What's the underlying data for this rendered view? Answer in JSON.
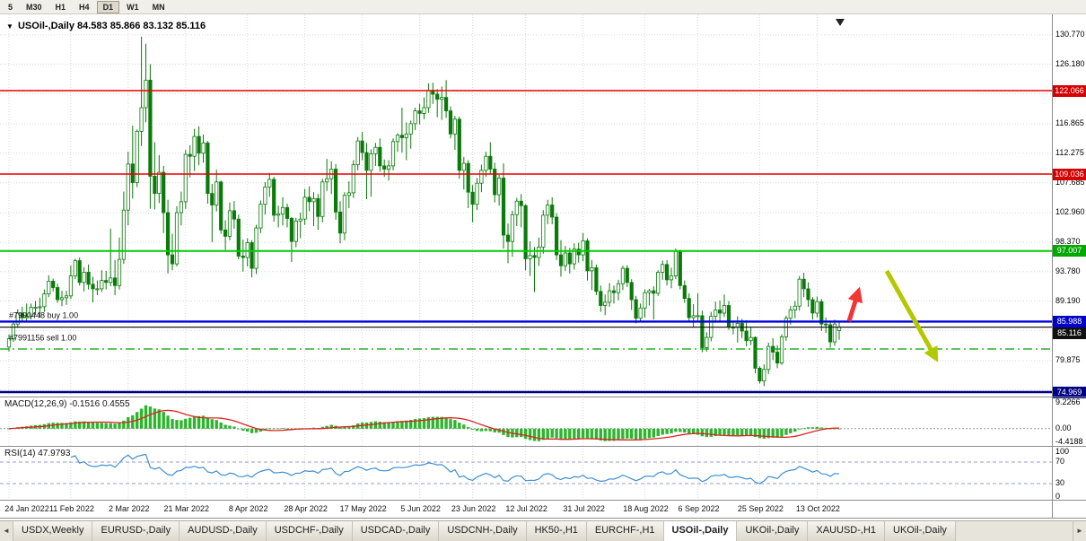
{
  "toolbar": {
    "timeframes": [
      "5",
      "M30",
      "H1",
      "H4",
      "D1",
      "W1",
      "MN"
    ],
    "active": "D1"
  },
  "chart": {
    "collapse_icon": "▼",
    "ohlc_text": "84.583 85.866 83.132 85.116",
    "trade_labels": [
      {
        "text": "#7990448 buy 1.00",
        "price": 86.55
      },
      {
        "text": "#7991156 sell 1.00",
        "price": 83.05
      }
    ]
  },
  "chart_data": {
    "type": "candlestick",
    "symbol_label": "USOil-,Daily",
    "timeframe": "Daily",
    "ohlc_current": {
      "open": 84.583,
      "high": 85.866,
      "low": 83.132,
      "close": 85.116
    },
    "candle_color": "#0b7a0b",
    "candle_up_fill": "#ffffff",
    "y_ticks": [
      130.77,
      126.18,
      116.865,
      112.275,
      107.685,
      102.96,
      98.37,
      93.78,
      89.19,
      79.875
    ],
    "y_grid_extra": [
      121.59,
      84.6,
      75.285
    ],
    "x_labels": [
      [
        0,
        "24 Jan 2022"
      ],
      [
        14,
        "11 Feb 2022"
      ],
      [
        27,
        "2 Mar 2022"
      ],
      [
        40,
        "21 Mar 2022"
      ],
      [
        54,
        "8 Apr 2022"
      ],
      [
        67,
        "28 Apr 2022"
      ],
      [
        80,
        "17 May 2022"
      ],
      [
        93,
        "5 Jun 2022"
      ],
      [
        105,
        "23 Jun 2022"
      ],
      [
        117,
        "12 Jul 2022"
      ],
      [
        130,
        "31 Jul 2022"
      ],
      [
        144,
        "18 Aug 2022"
      ],
      [
        156,
        "6 Sep 2022"
      ],
      [
        170,
        "25 Sep 2022"
      ],
      [
        183,
        "13 Oct 2022"
      ]
    ],
    "hlines": [
      {
        "price": 122.066,
        "color": "#e60000",
        "width": 1.6,
        "style": "solid",
        "badge": "#d40000"
      },
      {
        "price": 109.036,
        "color": "#e60000",
        "width": 1.6,
        "style": "solid",
        "badge": "#d40000"
      },
      {
        "price": 97.007,
        "color": "#00cc00",
        "width": 2,
        "style": "solid",
        "badge": "#00a800"
      },
      {
        "price": 85.988,
        "color": "#0000dd",
        "width": 2.4,
        "style": "solid",
        "badge": "#0000c8"
      },
      {
        "price": 85.116,
        "color": "#1a1a1a",
        "width": 1.2,
        "style": "solid",
        "badge": "#111111"
      },
      {
        "price": 81.7,
        "color": "#00a000",
        "width": 1.2,
        "style": "dashdot",
        "badge": null
      },
      {
        "price": 74.969,
        "color": "#000085",
        "width": 2.6,
        "style": "solid",
        "badge": "#000085"
      }
    ],
    "arrows": [
      {
        "from": [
          946,
          342
        ],
        "to": [
          956,
          310
        ],
        "color": "#f23535",
        "name": "red-up-arrow"
      },
      {
        "from": [
          988,
          286
        ],
        "to": [
          1042,
          382
        ],
        "color": "#b4c800",
        "name": "yellow-down-arrow"
      }
    ],
    "candles": [
      [
        82.0,
        84.0,
        81.3,
        83.3
      ],
      [
        83.3,
        86.0,
        82.8,
        85.6
      ],
      [
        85.6,
        87.9,
        85.0,
        87.3
      ],
      [
        87.3,
        88.3,
        86.0,
        86.6
      ],
      [
        86.6,
        88.8,
        86.0,
        86.8
      ],
      [
        86.8,
        88.8,
        86.3,
        88.2
      ],
      [
        88.2,
        89.2,
        87.0,
        88.2
      ],
      [
        88.2,
        89.7,
        86.6,
        88.3
      ],
      [
        88.3,
        91.0,
        87.5,
        90.3
      ],
      [
        90.3,
        93.2,
        89.8,
        92.3
      ],
      [
        92.3,
        92.7,
        90.7,
        91.3
      ],
      [
        91.3,
        91.9,
        88.9,
        89.4
      ],
      [
        89.4,
        90.8,
        88.4,
        89.7
      ],
      [
        89.7,
        90.8,
        88.6,
        90.0
      ],
      [
        90.0,
        94.7,
        89.5,
        93.1
      ],
      [
        93.1,
        95.8,
        92.6,
        95.5
      ],
      [
        95.5,
        96.0,
        91.6,
        92.1
      ],
      [
        92.1,
        94.5,
        90.7,
        93.7
      ],
      [
        93.7,
        94.9,
        91.0,
        91.8
      ],
      [
        91.8,
        93.0,
        89.0,
        91.1
      ],
      [
        91.1,
        92.4,
        90.1,
        91.1
      ],
      [
        91.1,
        94.0,
        90.6,
        92.4
      ],
      [
        92.4,
        93.9,
        91.0,
        92.1
      ],
      [
        92.1,
        100.5,
        91.5,
        92.8
      ],
      [
        92.8,
        95.6,
        90.1,
        91.6
      ],
      [
        91.6,
        99.1,
        91.0,
        95.7
      ],
      [
        95.7,
        106.3,
        95.0,
        103.4
      ],
      [
        103.4,
        112.5,
        101.0,
        110.6
      ],
      [
        110.6,
        116.6,
        105.2,
        107.7
      ],
      [
        107.7,
        116.0,
        107.0,
        115.7
      ],
      [
        115.7,
        130.5,
        113.4,
        119.4
      ],
      [
        119.4,
        129.4,
        117.1,
        123.7
      ],
      [
        123.7,
        126.2,
        103.6,
        108.7
      ],
      [
        108.7,
        114.0,
        103.5,
        106.0
      ],
      [
        106.0,
        112.0,
        104.5,
        109.3
      ],
      [
        109.3,
        110.3,
        99.8,
        103.0
      ],
      [
        103.0,
        105.0,
        93.5,
        96.4
      ],
      [
        96.4,
        99.7,
        94.0,
        95.0
      ],
      [
        95.0,
        104.0,
        94.6,
        103.0
      ],
      [
        103.0,
        106.3,
        101.0,
        104.7
      ],
      [
        104.7,
        112.8,
        103.6,
        112.1
      ],
      [
        112.1,
        113.5,
        108.5,
        111.8
      ],
      [
        111.8,
        116.1,
        109.5,
        114.9
      ],
      [
        114.9,
        116.5,
        110.4,
        112.3
      ],
      [
        112.3,
        115.2,
        110.8,
        113.9
      ],
      [
        113.9,
        114.2,
        104.4,
        106.0
      ],
      [
        106.0,
        107.5,
        98.4,
        104.2
      ],
      [
        104.2,
        109.7,
        103.2,
        107.8
      ],
      [
        107.8,
        108.0,
        99.7,
        100.3
      ],
      [
        100.3,
        101.8,
        97.2,
        99.3
      ],
      [
        99.3,
        104.6,
        98.7,
        103.3
      ],
      [
        103.3,
        104.8,
        100.5,
        102.0
      ],
      [
        102.0,
        102.7,
        95.7,
        96.2
      ],
      [
        96.2,
        98.8,
        93.8,
        96.0
      ],
      [
        96.0,
        99.0,
        94.6,
        98.3
      ],
      [
        98.3,
        98.7,
        92.9,
        94.3
      ],
      [
        94.3,
        101.1,
        93.4,
        100.6
      ],
      [
        100.6,
        104.9,
        99.8,
        104.3
      ],
      [
        104.3,
        107.8,
        102.7,
        107.0
      ],
      [
        107.0,
        109.2,
        105.5,
        108.2
      ],
      [
        108.2,
        108.6,
        101.6,
        102.6
      ],
      [
        102.6,
        104.1,
        100.7,
        102.8
      ],
      [
        102.8,
        105.4,
        101.0,
        103.8
      ],
      [
        103.8,
        104.4,
        100.7,
        102.1
      ],
      [
        102.1,
        102.3,
        95.3,
        98.5
      ],
      [
        98.5,
        102.2,
        97.6,
        101.7
      ],
      [
        101.7,
        103.0,
        99.0,
        102.0
      ],
      [
        102.0,
        106.7,
        101.1,
        105.4
      ],
      [
        105.4,
        107.1,
        103.2,
        104.7
      ],
      [
        104.7,
        106.2,
        100.9,
        105.2
      ],
      [
        105.2,
        105.9,
        100.3,
        102.4
      ],
      [
        102.4,
        108.3,
        101.5,
        107.8
      ],
      [
        107.8,
        111.4,
        106.4,
        108.3
      ],
      [
        108.3,
        111.0,
        105.9,
        109.8
      ],
      [
        109.8,
        110.6,
        101.9,
        103.1
      ],
      [
        103.1,
        104.8,
        98.2,
        99.8
      ],
      [
        99.8,
        106.2,
        98.7,
        105.7
      ],
      [
        105.7,
        107.9,
        103.7,
        106.1
      ],
      [
        106.1,
        111.2,
        105.3,
        110.5
      ],
      [
        110.5,
        114.8,
        109.6,
        114.2
      ],
      [
        114.2,
        115.6,
        111.2,
        112.4
      ],
      [
        112.4,
        113.9,
        105.1,
        109.6
      ],
      [
        109.6,
        112.9,
        105.5,
        112.2
      ],
      [
        112.2,
        113.9,
        110.3,
        113.2
      ],
      [
        113.2,
        114.6,
        109.4,
        110.3
      ],
      [
        110.3,
        111.3,
        108.6,
        109.8
      ],
      [
        109.8,
        111.2,
        108.0,
        110.3
      ],
      [
        110.3,
        114.6,
        109.6,
        114.1
      ],
      [
        114.1,
        115.4,
        112.5,
        115.1
      ],
      [
        115.1,
        119.4,
        112.4,
        114.7
      ],
      [
        114.7,
        117.1,
        111.2,
        115.3
      ],
      [
        115.3,
        117.4,
        113.0,
        116.9
      ],
      [
        116.9,
        119.4,
        115.9,
        118.9
      ],
      [
        118.9,
        120.0,
        116.8,
        118.5
      ],
      [
        118.5,
        121.0,
        117.6,
        119.4
      ],
      [
        119.4,
        123.2,
        118.6,
        122.1
      ],
      [
        122.1,
        123.3,
        120.0,
        121.5
      ],
      [
        121.5,
        122.3,
        117.9,
        120.7
      ],
      [
        120.7,
        122.7,
        117.5,
        121.0
      ],
      [
        121.0,
        123.7,
        117.8,
        118.9
      ],
      [
        118.9,
        119.6,
        114.6,
        115.3
      ],
      [
        115.3,
        118.1,
        112.8,
        117.6
      ],
      [
        117.6,
        118.0,
        108.3,
        109.6
      ],
      [
        109.6,
        111.7,
        106.6,
        110.7
      ],
      [
        110.7,
        111.2,
        103.7,
        106.2
      ],
      [
        106.2,
        107.3,
        101.5,
        104.3
      ],
      [
        104.3,
        108.4,
        103.4,
        107.6
      ],
      [
        107.6,
        110.5,
        106.2,
        109.6
      ],
      [
        109.6,
        112.5,
        108.6,
        111.8
      ],
      [
        111.8,
        114.0,
        109.0,
        109.8
      ],
      [
        109.8,
        110.8,
        104.6,
        105.8
      ],
      [
        105.8,
        108.9,
        104.1,
        108.4
      ],
      [
        108.4,
        110.7,
        97.4,
        99.5
      ],
      [
        99.5,
        101.3,
        95.1,
        98.5
      ],
      [
        98.5,
        103.3,
        96.1,
        102.7
      ],
      [
        102.7,
        105.3,
        100.9,
        104.8
      ],
      [
        104.8,
        105.9,
        100.7,
        104.1
      ],
      [
        104.1,
        104.3,
        94.0,
        95.8
      ],
      [
        95.8,
        98.5,
        93.1,
        96.3
      ],
      [
        96.3,
        97.6,
        90.6,
        96.0
      ],
      [
        96.0,
        99.1,
        94.7,
        97.6
      ],
      [
        97.6,
        103.4,
        96.6,
        102.6
      ],
      [
        102.6,
        105.0,
        101.2,
        104.2
      ],
      [
        104.2,
        105.4,
        101.2,
        102.3
      ],
      [
        102.3,
        102.9,
        95.6,
        96.4
      ],
      [
        96.4,
        98.7,
        93.0,
        94.7
      ],
      [
        94.7,
        97.8,
        93.9,
        96.7
      ],
      [
        96.7,
        97.5,
        93.5,
        95.0
      ],
      [
        95.0,
        98.2,
        94.1,
        97.3
      ],
      [
        97.3,
        98.3,
        95.2,
        96.4
      ],
      [
        96.4,
        99.8,
        95.4,
        98.6
      ],
      [
        98.6,
        99.0,
        92.4,
        93.9
      ],
      [
        93.9,
        95.6,
        90.9,
        94.4
      ],
      [
        94.4,
        94.9,
        90.1,
        90.7
      ],
      [
        90.7,
        91.6,
        87.5,
        88.5
      ],
      [
        88.5,
        90.2,
        87.0,
        89.0
      ],
      [
        89.0,
        92.0,
        88.3,
        90.8
      ],
      [
        90.8,
        91.6,
        88.8,
        90.5
      ],
      [
        90.5,
        92.5,
        89.3,
        91.9
      ],
      [
        91.9,
        94.7,
        90.9,
        94.3
      ],
      [
        94.3,
        94.8,
        91.4,
        92.1
      ],
      [
        92.1,
        92.6,
        87.8,
        89.4
      ],
      [
        89.4,
        90.0,
        85.7,
        86.5
      ],
      [
        86.5,
        88.8,
        85.9,
        88.1
      ],
      [
        88.1,
        91.0,
        86.6,
        90.5
      ],
      [
        90.5,
        91.1,
        88.5,
        90.8
      ],
      [
        90.8,
        91.5,
        86.3,
        90.4
      ],
      [
        90.4,
        94.0,
        90.0,
        93.7
      ],
      [
        93.7,
        95.5,
        92.5,
        94.9
      ],
      [
        94.9,
        95.6,
        91.6,
        92.5
      ],
      [
        92.5,
        94.4,
        91.2,
        93.1
      ],
      [
        93.1,
        97.4,
        92.6,
        97.0
      ],
      [
        97.0,
        97.2,
        91.0,
        91.6
      ],
      [
        91.6,
        92.4,
        88.9,
        89.6
      ],
      [
        89.6,
        90.4,
        86.0,
        86.6
      ],
      [
        86.6,
        88.7,
        85.1,
        86.9
      ],
      [
        86.9,
        90.4,
        86.1,
        86.9
      ],
      [
        86.9,
        87.7,
        81.2,
        81.9
      ],
      [
        81.9,
        84.3,
        81.3,
        83.5
      ],
      [
        83.5,
        87.5,
        82.9,
        86.8
      ],
      [
        86.8,
        89.1,
        85.8,
        87.8
      ],
      [
        87.8,
        89.3,
        85.9,
        87.3
      ],
      [
        87.3,
        90.2,
        86.7,
        88.5
      ],
      [
        88.5,
        89.2,
        84.7,
        85.1
      ],
      [
        85.1,
        86.1,
        84.0,
        85.1
      ],
      [
        85.1,
        86.8,
        82.7,
        85.7
      ],
      [
        85.7,
        86.4,
        83.4,
        84.5
      ],
      [
        84.5,
        86.2,
        82.1,
        83.0
      ],
      [
        83.0,
        85.2,
        82.3,
        83.5
      ],
      [
        83.5,
        83.7,
        77.9,
        78.7
      ],
      [
        78.7,
        79.0,
        76.3,
        76.7
      ],
      [
        76.7,
        79.3,
        75.9,
        78.5
      ],
      [
        78.5,
        82.7,
        77.8,
        82.1
      ],
      [
        82.1,
        83.4,
        80.0,
        81.2
      ],
      [
        81.2,
        82.3,
        78.7,
        79.5
      ],
      [
        79.5,
        84.0,
        79.2,
        83.6
      ],
      [
        83.6,
        86.9,
        83.0,
        86.5
      ],
      [
        86.5,
        88.4,
        85.5,
        87.8
      ],
      [
        87.8,
        89.2,
        86.5,
        88.4
      ],
      [
        88.4,
        93.1,
        87.7,
        92.6
      ],
      [
        92.6,
        93.6,
        89.8,
        91.1
      ],
      [
        91.1,
        92.1,
        88.3,
        89.4
      ],
      [
        89.4,
        89.8,
        86.3,
        87.3
      ],
      [
        87.3,
        89.9,
        86.6,
        89.1
      ],
      [
        89.1,
        89.5,
        84.5,
        85.6
      ],
      [
        85.6,
        86.6,
        84.2,
        85.5
      ],
      [
        85.5,
        86.0,
        81.9,
        82.8
      ],
      [
        82.8,
        86.3,
        82.2,
        85.6
      ],
      [
        84.583,
        85.866,
        83.132,
        85.116
      ]
    ],
    "indicators": {
      "macd": {
        "name_label": "MACD(12,26,9)",
        "value_text": "-0.1516 0.4555",
        "fast": 12,
        "slow": 26,
        "signal": 9,
        "scale_labels": [
          "9.2266",
          "0.00",
          "-4.4188"
        ],
        "scale_max": 9.2266,
        "scale_min": -4.4188,
        "histogram_color": "#2db52d",
        "signal_color": "#dd2222"
      },
      "rsi": {
        "name_label": "RSI(14)",
        "value_text": "47.9793",
        "period": 14,
        "levels": [
          100,
          70,
          30,
          0
        ],
        "line_color": "#3f8fd2"
      }
    }
  },
  "tabbar": {
    "scroll_left_icon": "◄",
    "scroll_right_icon": "►",
    "active_index": 8,
    "tabs": [
      "USDX,Weekly",
      "EURUSD-,Daily",
      "AUDUSD-,Daily",
      "USDCHF-,Daily",
      "USDCAD-,Daily",
      "USDCNH-,Daily",
      "HK50-,H1",
      "EURCHF-,H1",
      "USOil-,Daily",
      "UKOil-,Daily",
      "XAUUSD-,H1",
      "UKOil-,Daily"
    ]
  }
}
